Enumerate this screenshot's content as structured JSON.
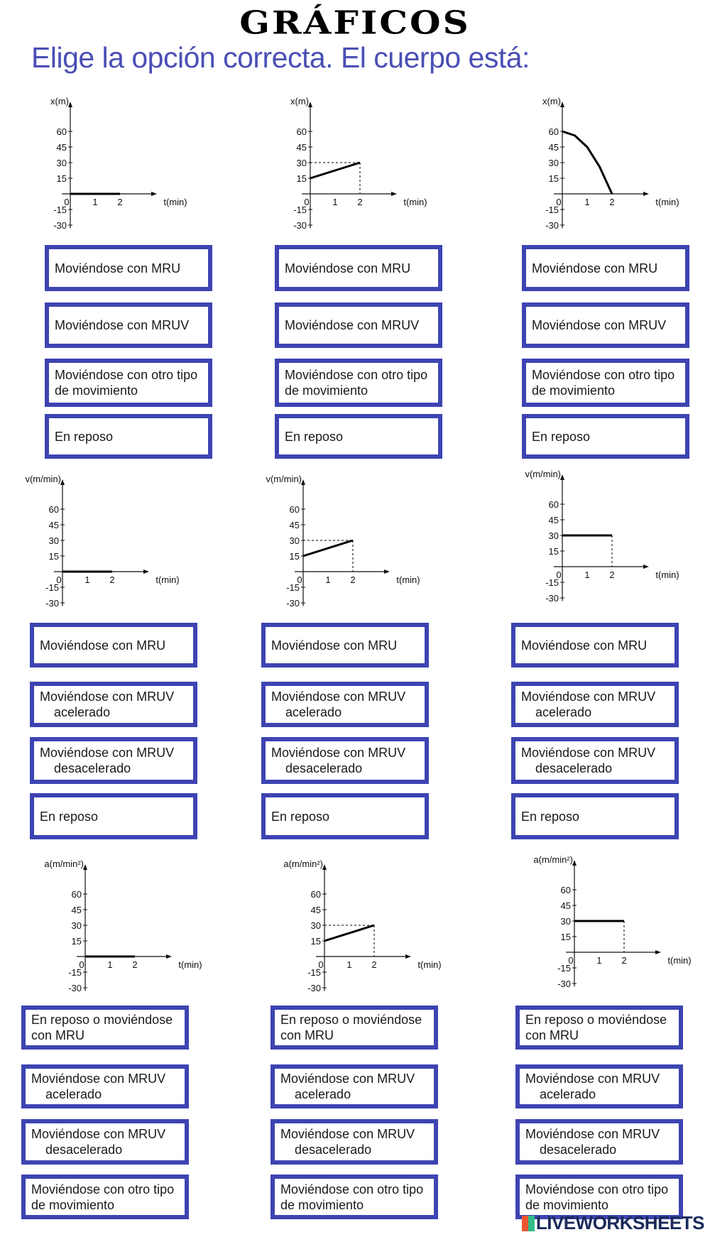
{
  "title": "GRÁFICOS",
  "subtitle": "Elige la opción correcta. El cuerpo está:",
  "brand": "LIVEWORKSHEETS",
  "colors": {
    "box_border": "#3d44b2",
    "subtitle": "#4a4fb5"
  },
  "chart_data": [
    {
      "type": "line",
      "ylabel": "x(m)",
      "xlabel": "t(min)",
      "y_ticks": [
        60,
        45,
        30,
        15,
        -15,
        -30
      ],
      "x_ticks": [
        0,
        1,
        2
      ],
      "series": [
        {
          "x": [
            0,
            2
          ],
          "y": [
            0,
            0
          ]
        }
      ],
      "guides": false
    },
    {
      "type": "line",
      "ylabel": "x(m)",
      "xlabel": "t(min)",
      "y_ticks": [
        60,
        45,
        30,
        15,
        -15,
        -30
      ],
      "x_ticks": [
        0,
        1,
        2
      ],
      "series": [
        {
          "x": [
            0,
            2
          ],
          "y": [
            15,
            30
          ]
        }
      ],
      "guides": true
    },
    {
      "type": "line",
      "ylabel": "x(m)",
      "xlabel": "t(min)",
      "y_ticks": [
        60,
        45,
        30,
        15,
        -15,
        -30
      ],
      "x_ticks": [
        0,
        1,
        2
      ],
      "series": [
        {
          "x": [
            0,
            0.5,
            1,
            1.5,
            2
          ],
          "y": [
            60,
            56,
            45,
            26,
            0
          ]
        }
      ],
      "guides": false
    },
    {
      "type": "line",
      "ylabel": "v(m/min)",
      "xlabel": "t(min)",
      "y_ticks": [
        60,
        45,
        30,
        15,
        -15,
        -30
      ],
      "x_ticks": [
        0,
        1,
        2
      ],
      "series": [
        {
          "x": [
            0,
            2
          ],
          "y": [
            0,
            0
          ]
        }
      ],
      "guides": false
    },
    {
      "type": "line",
      "ylabel": "v(m/min)",
      "xlabel": "t(min)",
      "y_ticks": [
        60,
        45,
        30,
        15,
        -15,
        -30
      ],
      "x_ticks": [
        0,
        1,
        2
      ],
      "series": [
        {
          "x": [
            0,
            2
          ],
          "y": [
            15,
            30
          ]
        }
      ],
      "guides": true
    },
    {
      "type": "line",
      "ylabel": "v(m/min)",
      "xlabel": "t(min)",
      "y_ticks": [
        60,
        45,
        30,
        15,
        -15,
        -30
      ],
      "x_ticks": [
        0,
        1,
        2
      ],
      "series": [
        {
          "x": [
            0,
            2
          ],
          "y": [
            30,
            30
          ]
        }
      ],
      "guides": true
    },
    {
      "type": "line",
      "ylabel": "a(m/min²)",
      "xlabel": "t(min)",
      "y_ticks": [
        60,
        45,
        30,
        15,
        -15,
        -30
      ],
      "x_ticks": [
        0,
        1,
        2
      ],
      "series": [
        {
          "x": [
            0,
            2
          ],
          "y": [
            0,
            0
          ]
        }
      ],
      "guides": false
    },
    {
      "type": "line",
      "ylabel": "a(m/min²)",
      "xlabel": "t(min)",
      "y_ticks": [
        60,
        45,
        30,
        15,
        -15,
        -30
      ],
      "x_ticks": [
        0,
        1,
        2
      ],
      "series": [
        {
          "x": [
            0,
            2
          ],
          "y": [
            15,
            30
          ]
        }
      ],
      "guides": true
    },
    {
      "type": "line",
      "ylabel": "a(m/min²)",
      "xlabel": "t(min)",
      "y_ticks": [
        60,
        45,
        30,
        15,
        -15,
        -30
      ],
      "x_ticks": [
        0,
        1,
        2
      ],
      "series": [
        {
          "x": [
            0,
            2
          ],
          "y": [
            30,
            30
          ]
        }
      ],
      "guides": true
    }
  ],
  "options": [
    [
      "Moviéndose con MRU",
      "Moviéndose con MRUV",
      "Moviéndose con otro tipo\nde movimiento",
      "En reposo"
    ],
    [
      "Moviéndose con MRU",
      "Moviéndose con MRUV",
      "Moviéndose con otro tipo\nde movimiento",
      "En reposo"
    ],
    [
      "Moviéndose con MRU",
      "Moviéndose con MRUV",
      "Moviéndose con otro tipo\nde movimiento",
      "En reposo"
    ],
    [
      "Moviéndose con MRU",
      "Moviéndose con MRUV\n    acelerado",
      "Moviéndose con MRUV\n    desacelerado",
      "En reposo"
    ],
    [
      "Moviéndose con MRU",
      "Moviéndose con MRUV\n    acelerado",
      "Moviéndose con MRUV\n    desacelerado",
      "En reposo"
    ],
    [
      "Moviéndose con MRU",
      "Moviéndose con MRUV\n    acelerado",
      "Moviéndose con MRUV\n    desacelerado",
      "En reposo"
    ],
    [
      "En reposo o moviéndose\ncon MRU",
      "Moviéndose con MRUV\n    acelerado",
      "Moviéndose con MRUV\n    desacelerado",
      "Moviéndose con otro tipo\nde movimiento"
    ],
    [
      "En reposo o moviéndose\ncon MRU",
      "Moviéndose con MRUV\n    acelerado",
      "Moviéndose con MRUV\n    desacelerado",
      "Moviéndose con otro tipo\nde movimiento"
    ],
    [
      "En reposo o moviéndose\ncon MRU",
      "Moviéndose con MRUV\n    acelerado",
      "Moviéndose con MRUV\n    desacelerado",
      "Moviéndose con otro tipo\nde movimiento"
    ]
  ]
}
